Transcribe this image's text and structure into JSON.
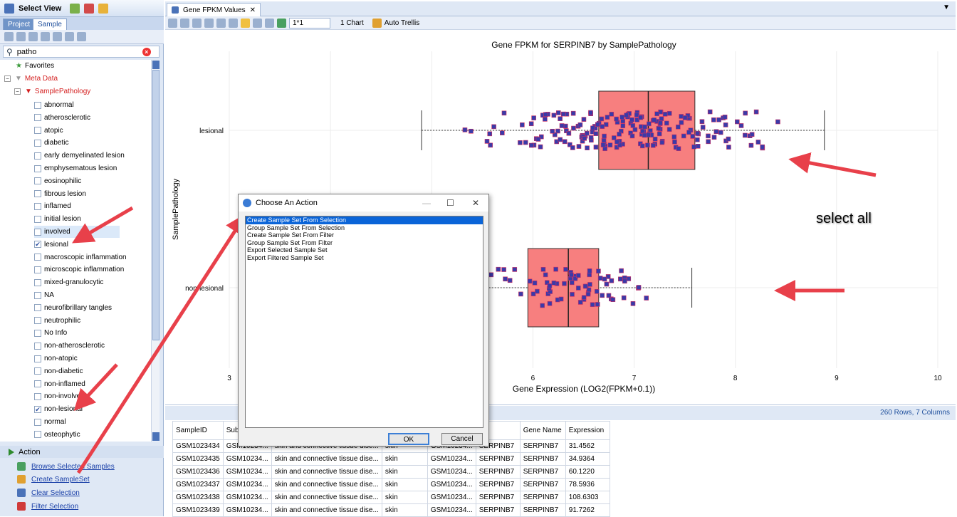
{
  "left_panel": {
    "title": "Select View",
    "tabs": [
      "Project",
      "Sample"
    ],
    "search_value": "patho",
    "tree": {
      "favorites": "Favorites",
      "meta_data": "Meta Data",
      "sample_pathology": "SamplePathology",
      "items": [
        {
          "label": "abnormal",
          "checked": false
        },
        {
          "label": "atherosclerotic",
          "checked": false
        },
        {
          "label": "atopic",
          "checked": false
        },
        {
          "label": "diabetic",
          "checked": false
        },
        {
          "label": "early demyelinated lesion",
          "checked": false
        },
        {
          "label": "emphysematous lesion",
          "checked": false
        },
        {
          "label": "eosinophilic",
          "checked": false
        },
        {
          "label": "fibrous lesion",
          "checked": false
        },
        {
          "label": "inflamed",
          "checked": false
        },
        {
          "label": "initial lesion",
          "checked": false
        },
        {
          "label": "involved",
          "checked": false
        },
        {
          "label": "lesional",
          "checked": true
        },
        {
          "label": "macroscopic inflammation",
          "checked": false
        },
        {
          "label": "microscopic inflammation",
          "checked": false
        },
        {
          "label": "mixed-granulocytic",
          "checked": false
        },
        {
          "label": "NA",
          "checked": false
        },
        {
          "label": "neurofibrillary tangles",
          "checked": false
        },
        {
          "label": "neutrophilic",
          "checked": false
        },
        {
          "label": "No Info",
          "checked": false
        },
        {
          "label": "non-atherosclerotic",
          "checked": false
        },
        {
          "label": "non-atopic",
          "checked": false
        },
        {
          "label": "non-diabetic",
          "checked": false
        },
        {
          "label": "non-inflamed",
          "checked": false
        },
        {
          "label": "non-involved",
          "checked": false
        },
        {
          "label": "non-lesional",
          "checked": true
        },
        {
          "label": "normal",
          "checked": false
        },
        {
          "label": "osteophytic",
          "checked": false
        }
      ]
    },
    "action": {
      "header": "Action",
      "links": [
        "Browse Selected Samples",
        "Create SampleSet",
        "Clear Selection",
        "Filter Selection"
      ]
    }
  },
  "document_tab": "Gene FPKM Values",
  "toolbar": {
    "layout_value": "1*1",
    "chart_count": "1 Chart",
    "auto_trellis": "Auto Trellis"
  },
  "chart_data": {
    "type": "box",
    "title": "Gene FPKM for SERPINB7 by SamplePathology",
    "xlabel": "Gene Expression (LOG2(FPKM+0.1))",
    "ylabel": "SamplePathology",
    "xlim": [
      3,
      10
    ],
    "x_ticks": [
      "3",
      "4",
      "5",
      "6",
      "7",
      "8",
      "9",
      "10"
    ],
    "categories": [
      "lesional",
      "non-lesional"
    ],
    "boxes": [
      {
        "name": "lesional",
        "whisker_low": 4.9,
        "q1": 6.65,
        "median": 7.14,
        "q3": 7.6,
        "whisker_high": 8.88
      },
      {
        "name": "non-lesional",
        "whisker_low": 5.2,
        "q1": 5.95,
        "median": 6.35,
        "q3": 6.65,
        "whisker_high": 7.57
      }
    ],
    "point_color": "#3a3aa8",
    "box_color": "#f77f7f",
    "grid": true
  },
  "annotation": "select all",
  "grid": {
    "rows_info": "260 Rows, 7 Columns",
    "columns": [
      "SampleID",
      "Subje",
      "",
      "",
      "",
      "D",
      "Gene Name",
      "Expression"
    ],
    "rows": [
      [
        "GSM1023434",
        "GSM10234...",
        "skin and connective tissue dise...",
        "skin",
        "GSM10234...",
        "SERPINB7",
        "SERPINB7",
        "31.4562"
      ],
      [
        "GSM1023435",
        "GSM10234...",
        "skin and connective tissue dise...",
        "skin",
        "GSM10234...",
        "SERPINB7",
        "SERPINB7",
        "34.9364"
      ],
      [
        "GSM1023436",
        "GSM10234...",
        "skin and connective tissue dise...",
        "skin",
        "GSM10234...",
        "SERPINB7",
        "SERPINB7",
        "60.1220"
      ],
      [
        "GSM1023437",
        "GSM10234...",
        "skin and connective tissue dise...",
        "skin",
        "GSM10234...",
        "SERPINB7",
        "SERPINB7",
        "78.5936"
      ],
      [
        "GSM1023438",
        "GSM10234...",
        "skin and connective tissue dise...",
        "skin",
        "GSM10234...",
        "SERPINB7",
        "SERPINB7",
        "108.6303"
      ],
      [
        "GSM1023439",
        "GSM10234...",
        "skin and connective tissue dise...",
        "skin",
        "GSM10234...",
        "SERPINB7",
        "SERPINB7",
        "91.7262"
      ]
    ]
  },
  "dialog": {
    "title": "Choose An Action",
    "options": [
      "Create Sample Set From Selection",
      "Group Sample Set From Selection",
      "Create Sample Set From Filter",
      "Group Sample Set From Filter",
      "Export Selected Sample Set",
      "Export Filtered Sample Set"
    ],
    "selected_index": 0,
    "ok_label": "OK",
    "cancel_label": "Cancel"
  }
}
